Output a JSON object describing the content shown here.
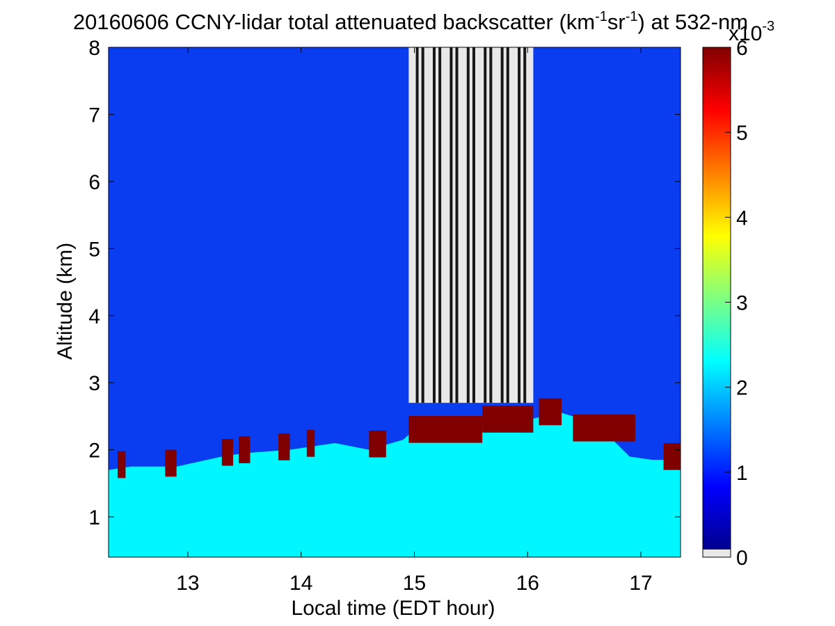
{
  "chart_data": {
    "type": "heatmap",
    "title": {
      "date": "20160606",
      "prefix": " CCNY-lidar total attenuated backscatter (km",
      "sup1": "-1",
      "mid": "sr",
      "sup2": "-1",
      "suffix": ") at 532-nm"
    },
    "xlabel": "Local time (EDT hour)",
    "ylabel": "Altitude (km)",
    "xlim": [
      12.3,
      17.35
    ],
    "ylim": [
      0.4,
      8.0
    ],
    "x_ticks": [
      13,
      14,
      15,
      16,
      17
    ],
    "y_ticks": [
      1,
      2,
      3,
      4,
      5,
      6,
      7,
      8
    ],
    "colorbar": {
      "range": [
        0,
        6
      ],
      "ticks": [
        0,
        1,
        2,
        3,
        4,
        5,
        6
      ],
      "multiplier_base": "x10",
      "multiplier_exp": "-3",
      "colormap": "jet",
      "below_range_color": "#e8e8e8"
    },
    "layers": {
      "boundary_layer": {
        "top_km": [
          [
            12.3,
            1.7
          ],
          [
            12.5,
            1.75
          ],
          [
            12.9,
            1.75
          ],
          [
            13.3,
            1.9
          ],
          [
            13.5,
            1.95
          ],
          [
            13.9,
            2.0
          ],
          [
            14.3,
            2.1
          ],
          [
            14.6,
            2.0
          ],
          [
            14.9,
            2.15
          ],
          [
            15.0,
            2.3
          ],
          [
            15.3,
            2.25
          ],
          [
            15.5,
            2.3
          ],
          [
            15.8,
            2.4
          ],
          [
            16.0,
            2.45
          ],
          [
            16.3,
            2.55
          ],
          [
            16.6,
            2.4
          ],
          [
            16.9,
            1.9
          ],
          [
            17.1,
            1.85
          ],
          [
            17.35,
            1.85
          ]
        ],
        "backscatter_1e-3": 2.2
      },
      "cloud_base": {
        "segments_hours": [
          [
            12.38,
            12.45
          ],
          [
            12.8,
            12.9
          ],
          [
            13.3,
            13.4
          ],
          [
            13.45,
            13.55
          ],
          [
            13.8,
            13.9
          ],
          [
            14.05,
            14.12
          ],
          [
            14.6,
            14.75
          ],
          [
            14.95,
            15.6
          ],
          [
            15.6,
            16.05
          ],
          [
            16.1,
            16.3
          ],
          [
            16.4,
            16.95
          ],
          [
            17.2,
            17.35
          ]
        ],
        "backscatter_1e-3": 6
      },
      "free_troposphere_backscatter_1e-3": 0.7,
      "no_data_region_hours": [
        14.95,
        16.05
      ],
      "cloud_top_km": 2.7
    }
  }
}
